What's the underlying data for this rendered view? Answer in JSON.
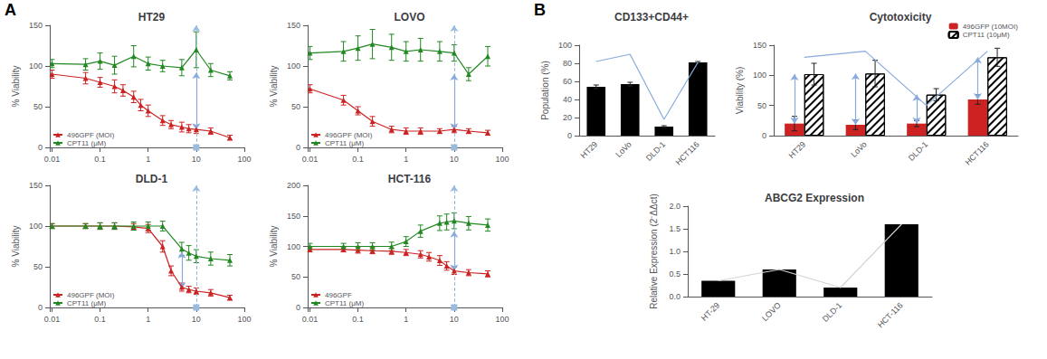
{
  "chart_data": [
    {
      "type": "line",
      "panel_label": "A",
      "title": "HT29",
      "y_label": "% Viability",
      "log": "x",
      "xlim": [
        0.009,
        100
      ],
      "xticks": [
        0.01,
        0.1,
        1,
        10,
        100
      ],
      "ylim": [
        0,
        150
      ],
      "yticks": [
        0,
        50,
        100,
        150
      ],
      "grid": false,
      "legend": "lower left",
      "reference_line": {
        "x": 10,
        "color": "#99bbdd",
        "line_style": "dashed"
      },
      "arrows": [
        {
          "x": 10,
          "from": 92,
          "to": 22,
          "color": "#88aadd"
        }
      ],
      "series": [
        {
          "name": "496GPF (MOI)",
          "color": "#cc2222",
          "marker": "triangle",
          "x": [
            0.01,
            0.05,
            0.1,
            0.2,
            0.3,
            0.5,
            0.7,
            1,
            2,
            3,
            5,
            7,
            10,
            20,
            50
          ],
          "values": [
            90,
            85,
            80,
            75,
            70,
            62,
            52,
            45,
            33,
            28,
            25,
            23,
            22,
            20,
            12
          ],
          "errors": [
            5,
            7,
            6,
            8,
            7,
            7,
            7,
            7,
            6,
            5,
            6,
            5,
            5,
            4,
            3
          ]
        },
        {
          "name": "CPT11 (μM)",
          "color": "#228822",
          "marker": "triangle",
          "x": [
            0.01,
            0.05,
            0.1,
            0.2,
            0.5,
            1,
            2,
            5,
            10,
            20,
            50
          ],
          "values": [
            103,
            102,
            106,
            101,
            112,
            103,
            100,
            98,
            120,
            95,
            88
          ],
          "errors": [
            5,
            7,
            10,
            11,
            13,
            8,
            7,
            10,
            22,
            8,
            5
          ]
        }
      ]
    },
    {
      "type": "line",
      "title": "LOVO",
      "y_label": "% Viability",
      "log": "x",
      "xlim": [
        0.009,
        100
      ],
      "xticks": [
        0.01,
        0.1,
        1,
        10,
        100
      ],
      "ylim": [
        0,
        150
      ],
      "yticks": [
        0,
        50,
        100,
        150
      ],
      "grid": false,
      "legend": "lower left",
      "reference_line": {
        "x": 10,
        "color": "#99bbdd",
        "line_style": "dashed"
      },
      "arrows": [
        {
          "x": 10,
          "from": 90,
          "to": 22,
          "color": "#88aadd"
        }
      ],
      "series": [
        {
          "name": "496GPF (MOI)",
          "color": "#cc2222",
          "marker": "triangle",
          "x": [
            0.01,
            0.05,
            0.1,
            0.2,
            0.5,
            1,
            2,
            5,
            10,
            20,
            50
          ],
          "values": [
            72,
            58,
            45,
            32,
            22,
            20,
            20,
            20,
            22,
            20,
            18
          ],
          "errors": [
            5,
            6,
            5,
            6,
            4,
            4,
            4,
            3,
            4,
            3,
            3
          ]
        },
        {
          "name": "CPT11 (μM)",
          "color": "#228822",
          "marker": "triangle",
          "x": [
            0.01,
            0.05,
            0.1,
            0.2,
            0.5,
            1,
            2,
            5,
            10,
            20,
            50
          ],
          "values": [
            116,
            118,
            122,
            127,
            123,
            118,
            120,
            118,
            116,
            90,
            112
          ],
          "errors": [
            8,
            12,
            15,
            18,
            16,
            12,
            14,
            12,
            10,
            8,
            12
          ]
        }
      ]
    },
    {
      "type": "line",
      "title": "DLD-1",
      "y_label": "% Viability",
      "log": "x",
      "xlim": [
        0.009,
        100
      ],
      "xticks": [
        0.01,
        0.1,
        1,
        10,
        100
      ],
      "ylim": [
        0,
        150
      ],
      "yticks": [
        0,
        50,
        100,
        150
      ],
      "grid": false,
      "legend": "lower left",
      "reference_line": {
        "x": 10,
        "color": "#99bbdd",
        "line_style": "dashed"
      },
      "arrows": [
        {
          "x": 5,
          "from": 68,
          "to": 23,
          "color": "#88aadd"
        }
      ],
      "series": [
        {
          "name": "496GPF (MOI)",
          "color": "#cc2222",
          "marker": "triangle",
          "x": [
            0.01,
            0.05,
            0.1,
            0.2,
            0.5,
            1,
            2,
            3,
            5,
            7,
            10,
            20,
            50
          ],
          "values": [
            100,
            100,
            100,
            100,
            99,
            97,
            75,
            45,
            25,
            22,
            20,
            18,
            12
          ],
          "errors": [
            3,
            3,
            4,
            4,
            4,
            5,
            7,
            6,
            5,
            4,
            4,
            4,
            3
          ]
        },
        {
          "name": "CPT11 (μM)",
          "color": "#228822",
          "marker": "triangle",
          "x": [
            0.01,
            0.05,
            0.1,
            0.2,
            0.5,
            1,
            2,
            5,
            7,
            10,
            20,
            50
          ],
          "values": [
            100,
            100,
            100,
            100,
            100,
            100,
            100,
            72,
            67,
            63,
            60,
            58
          ],
          "errors": [
            3,
            3,
            4,
            4,
            5,
            5,
            6,
            8,
            9,
            8,
            8,
            7
          ]
        }
      ]
    },
    {
      "type": "line",
      "title": "HCT-116",
      "y_label": "% Viability",
      "log": "x",
      "xlim": [
        0.009,
        100
      ],
      "xticks": [
        0.01,
        0.1,
        1,
        10,
        100
      ],
      "ylim": [
        0,
        200
      ],
      "yticks": [
        0,
        50,
        100,
        150,
        200
      ],
      "grid": false,
      "legend": "lower left",
      "reference_line": {
        "x": 10,
        "color": "#99bbdd",
        "line_style": "dashed"
      },
      "arrows": [
        {
          "x": 10,
          "from": 125,
          "to": 60,
          "color": "#88aadd"
        }
      ],
      "series": [
        {
          "name": "496GPF",
          "color": "#cc2222",
          "marker": "triangle",
          "x": [
            0.01,
            0.05,
            0.1,
            0.2,
            0.5,
            1,
            2,
            3,
            5,
            7,
            10,
            20,
            50
          ],
          "values": [
            95,
            95,
            94,
            93,
            92,
            90,
            87,
            83,
            77,
            68,
            60,
            57,
            55
          ],
          "errors": [
            4,
            4,
            5,
            5,
            5,
            5,
            6,
            7,
            8,
            7,
            6,
            5,
            5
          ]
        },
        {
          "name": "CPT11 (μM)",
          "color": "#228822",
          "marker": "triangle",
          "x": [
            0.01,
            0.05,
            0.1,
            0.2,
            0.5,
            1,
            2,
            5,
            7,
            10,
            20,
            50
          ],
          "values": [
            100,
            100,
            100,
            100,
            100,
            108,
            125,
            138,
            140,
            142,
            138,
            135
          ],
          "errors": [
            5,
            5,
            6,
            6,
            7,
            8,
            10,
            12,
            13,
            13,
            11,
            10
          ]
        }
      ]
    },
    {
      "type": "bar",
      "panel_label": "B",
      "title": "CD133+CD44+",
      "y_label": "Population (%)",
      "categories": [
        "HT29",
        "LoVo",
        "DLD-1",
        "HCT116"
      ],
      "ylim": [
        0,
        100
      ],
      "yticks": [
        0,
        20,
        40,
        60,
        80,
        100
      ],
      "grid": false,
      "series": [
        {
          "type": "bar",
          "color": "#000000",
          "values": [
            54,
            57,
            10,
            81
          ],
          "errors": [
            2,
            2,
            1,
            1
          ]
        },
        {
          "type": "line",
          "color": "#88aadd",
          "values": [
            82,
            90,
            18,
            81
          ]
        }
      ]
    },
    {
      "type": "bar",
      "title": "Cytotoxicity",
      "y_label": "Viability (%)",
      "categories": [
        "HT29",
        "LoVo",
        "DLD-1",
        "HCT116"
      ],
      "ylim": [
        0,
        150
      ],
      "yticks": [
        0,
        50,
        100,
        150
      ],
      "grid": false,
      "legend": "upper right",
      "arrows": [
        {
          "x": "HT29",
          "from": 102,
          "to": 20,
          "color": "#88aadd"
        },
        {
          "x": "LoVo",
          "from": 103,
          "to": 18,
          "color": "#88aadd"
        },
        {
          "x": "DLD-1",
          "from": 68,
          "to": 20,
          "color": "#88aadd"
        },
        {
          "x": "HCT116",
          "from": 130,
          "to": 60,
          "color": "#88aadd"
        }
      ],
      "series": [
        {
          "type": "bar",
          "name": "496GFP (10MOI)",
          "color": "#cc2222",
          "values": [
            20,
            18,
            20,
            60
          ],
          "errors": [
            12,
            8,
            5,
            8
          ]
        },
        {
          "type": "bar",
          "name": "CPT11 (10μM)",
          "color": "#ffffff",
          "values": [
            102,
            103,
            68,
            130
          ],
          "errors": [
            18,
            22,
            10,
            15
          ]
        },
        {
          "type": "line",
          "color": "#88aadd",
          "values": [
            130,
            140,
            50,
            140
          ]
        }
      ]
    },
    {
      "type": "bar",
      "title": "ABCG2 Expression",
      "y_label": "Relative Expression (2⁻ΔΔct)",
      "categories": [
        "HT-29",
        "LOVO",
        "DLD-1",
        "HCT-116"
      ],
      "ylim": [
        0,
        2
      ],
      "yticks": [
        {
          "value": 0,
          "label": "0.0"
        },
        0.5,
        {
          "value": 1,
          "label": "1.0"
        },
        1.5,
        {
          "value": 2,
          "label": "2.0"
        }
      ],
      "grid": false,
      "series": [
        {
          "type": "bar",
          "color": "#000000",
          "values": [
            0.35,
            0.6,
            0.2,
            1.6
          ]
        },
        {
          "type": "line",
          "color": "#d3d3d3",
          "values": [
            0.35,
            0.6,
            0.2,
            1.6
          ]
        }
      ]
    }
  ]
}
